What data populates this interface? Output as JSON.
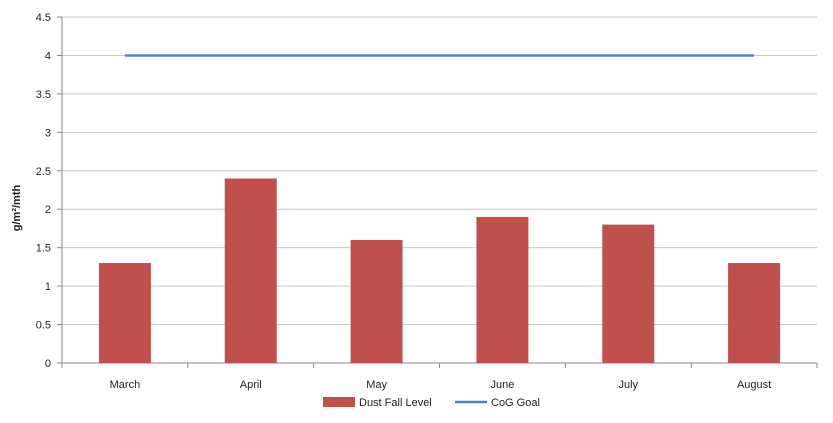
{
  "chart_data": {
    "type": "bar",
    "title": "",
    "xlabel": "",
    "ylabel": "g/m²/mth",
    "categories": [
      "March",
      "April",
      "May",
      "June",
      "July",
      "August"
    ],
    "ylim": [
      0,
      4.5
    ],
    "yticks": [
      "0",
      "0.5",
      "1",
      "1.5",
      "2",
      "2.5",
      "3",
      "3.5",
      "4",
      "4.5"
    ],
    "grid": true,
    "legend_position": "bottom",
    "series": [
      {
        "name": "Dust Fall Level",
        "kind": "bar",
        "color": "#c0504d",
        "values": [
          1.3,
          2.4,
          1.6,
          1.9,
          1.8,
          1.3
        ]
      },
      {
        "name": "CoG Goal",
        "kind": "line",
        "color": "#4f81bd",
        "values": [
          4,
          4,
          4,
          4,
          4,
          4
        ]
      }
    ]
  }
}
